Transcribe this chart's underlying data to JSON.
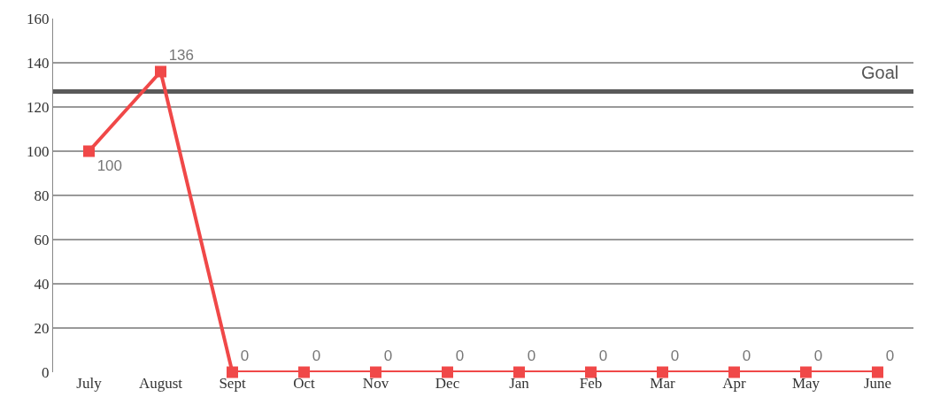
{
  "chart_data": {
    "type": "line",
    "categories": [
      "July",
      "August",
      "Sept",
      "Oct",
      "Nov",
      "Dec",
      "Jan",
      "Feb",
      "Mar",
      "Apr",
      "May",
      "June"
    ],
    "series": [
      {
        "color": "#f04848",
        "values": [
          100,
          136,
          0,
          0,
          0,
          0,
          0,
          0,
          0,
          0,
          0,
          0
        ]
      }
    ],
    "data_labels": true,
    "marker": "square",
    "line_style": "solid",
    "grid": "y",
    "legend": false,
    "ylim": [
      0,
      160
    ],
    "yticks": [
      0,
      20,
      40,
      60,
      80,
      100,
      120,
      140,
      160
    ],
    "ref_lines": [
      {
        "axis": "y",
        "value": 127,
        "label": "Goal",
        "color": "#5a5a5a",
        "line_style": "solid"
      }
    ]
  }
}
